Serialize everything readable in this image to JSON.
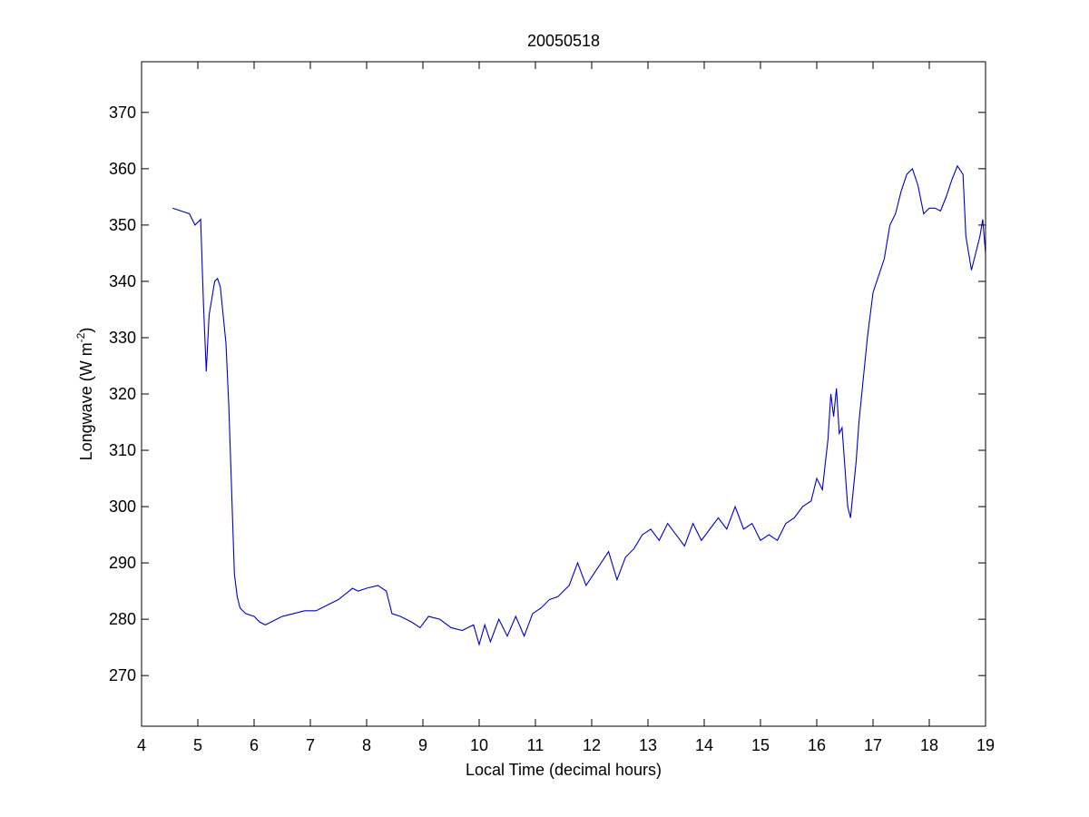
{
  "chart_data": {
    "type": "line",
    "title": "20050518",
    "xlabel": "Local Time (decimal hours)",
    "ylabel_main": "Longwave (W m",
    "ylabel_sup": "-2",
    "ylabel_close": ")",
    "xlim": [
      4,
      19
    ],
    "ylim": [
      261,
      379
    ],
    "xticks": [
      4,
      5,
      6,
      7,
      8,
      9,
      10,
      11,
      12,
      13,
      14,
      15,
      16,
      17,
      18,
      19
    ],
    "yticks": [
      270,
      280,
      290,
      300,
      310,
      320,
      330,
      340,
      350,
      360,
      370
    ],
    "grid": false,
    "line_color": "#0000cc",
    "series": [
      {
        "x": [
          4.55,
          4.7,
          4.85,
          4.95,
          5.05,
          5.1,
          5.15,
          5.2,
          5.25,
          5.3,
          5.35,
          5.4,
          5.45,
          5.5,
          5.55,
          5.6,
          5.65,
          5.7,
          5.75,
          5.85,
          6.0,
          6.1,
          6.2,
          6.3,
          6.5,
          6.7,
          6.9,
          7.1,
          7.3,
          7.5,
          7.75,
          7.85,
          8.0,
          8.2,
          8.35,
          8.45,
          8.6,
          8.8,
          8.95,
          9.1,
          9.3,
          9.5,
          9.7,
          9.9,
          10.0,
          10.1,
          10.2,
          10.35,
          10.5,
          10.65,
          10.8,
          10.95,
          11.1,
          11.25,
          11.4,
          11.6,
          11.75,
          11.9,
          12.1,
          12.3,
          12.45,
          12.6,
          12.75,
          12.9,
          13.05,
          13.2,
          13.35,
          13.5,
          13.65,
          13.8,
          13.95,
          14.1,
          14.25,
          14.4,
          14.55,
          14.7,
          14.85,
          15.0,
          15.15,
          15.3,
          15.45,
          15.6,
          15.75,
          15.9,
          16.0,
          16.1,
          16.2,
          16.25,
          16.3,
          16.35,
          16.4,
          16.45,
          16.5,
          16.55,
          16.6,
          16.65,
          16.7,
          16.75,
          16.8,
          16.85,
          16.9,
          17.0,
          17.1,
          17.2,
          17.3,
          17.4,
          17.5,
          17.6,
          17.7,
          17.8,
          17.9,
          18.0,
          18.1,
          18.2,
          18.3,
          18.4,
          18.5,
          18.6,
          18.65,
          18.75,
          18.9,
          18.95,
          19.0
        ],
        "values": [
          353,
          352.5,
          352,
          350,
          351,
          336,
          324,
          334,
          337,
          340,
          340.5,
          339,
          334,
          329,
          318,
          303,
          288,
          284,
          282,
          281,
          280.5,
          279.5,
          279,
          279.5,
          280.5,
          281,
          281.5,
          281.5,
          282.5,
          283.5,
          285.5,
          285,
          285.5,
          286,
          285,
          281,
          280.5,
          279.5,
          278.5,
          280.5,
          280,
          278.5,
          278,
          279,
          275.5,
          279,
          276,
          280,
          277,
          280.5,
          277,
          281,
          282,
          283.5,
          284,
          286,
          290,
          286,
          289,
          292,
          287,
          291,
          292.5,
          295,
          296,
          294,
          297,
          295,
          293,
          297,
          294,
          296,
          298,
          296,
          300,
          296,
          297,
          294,
          295,
          294,
          297,
          298,
          300,
          301,
          305,
          303,
          312,
          320,
          316,
          321,
          313,
          314,
          307,
          300,
          298,
          303,
          308,
          315,
          320,
          325,
          330,
          338,
          341,
          344,
          350,
          352,
          356,
          359,
          360,
          357,
          352,
          353,
          353,
          352.5,
          355,
          358,
          360.5,
          359,
          348,
          342,
          348,
          351,
          345
        ]
      }
    ]
  }
}
